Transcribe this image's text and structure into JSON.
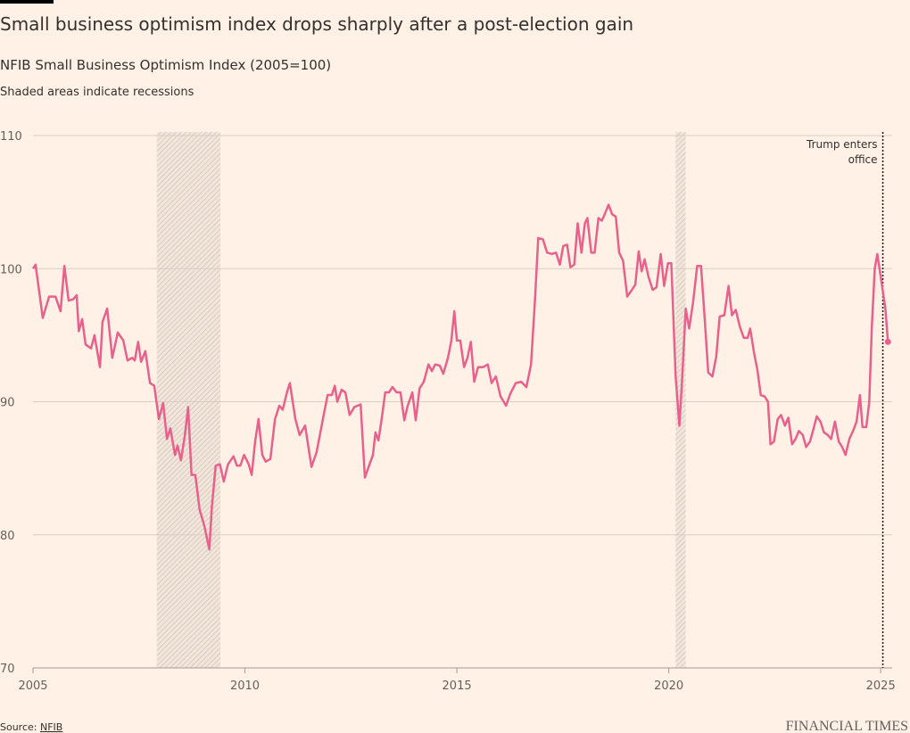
{
  "chart_data": {
    "type": "line",
    "title": "Small business optimism index drops sharply after a post-election gain",
    "subtitle": "NFIB Small Business Optimism Index (2005=100)",
    "note": "Shaded areas indicate recessions",
    "source_label": "Source:",
    "source": "NFIB",
    "brand": "FINANCIAL TIMES",
    "xlim": [
      2005,
      2025.27
    ],
    "xticks": [
      2005,
      2010,
      2015,
      2020,
      2025
    ],
    "ylim": [
      70,
      110
    ],
    "yticks": [
      70,
      80,
      90,
      100,
      110
    ],
    "grid": true,
    "recessions": [
      [
        2007.92,
        2009.42
      ],
      [
        2020.16,
        2020.4
      ]
    ],
    "annotation": {
      "text": [
        "Trump enters",
        "office"
      ],
      "x": 2025.05
    },
    "series": [
      {
        "name": "NFIB Small Business Optimism Index",
        "color": "#e8618c",
        "x": [
          2005.0,
          2005.06,
          2005.23,
          2005.38,
          2005.53,
          2005.65,
          2005.74,
          2005.84,
          2005.95,
          2006.03,
          2006.08,
          2006.16,
          2006.24,
          2006.37,
          2006.45,
          2006.58,
          2006.64,
          2006.75,
          2006.87,
          2007.0,
          2007.13,
          2007.23,
          2007.34,
          2007.4,
          2007.48,
          2007.55,
          2007.65,
          2007.76,
          2007.86,
          2007.97,
          2008.07,
          2008.16,
          2008.24,
          2008.35,
          2008.41,
          2008.49,
          2008.58,
          2008.66,
          2008.74,
          2008.83,
          2008.93,
          2009.04,
          2009.16,
          2009.22,
          2009.31,
          2009.41,
          2009.5,
          2009.6,
          2009.73,
          2009.81,
          2009.89,
          2009.98,
          2010.09,
          2010.16,
          2010.24,
          2010.32,
          2010.41,
          2010.49,
          2010.6,
          2010.71,
          2010.81,
          2010.89,
          2011.0,
          2011.06,
          2011.19,
          2011.29,
          2011.42,
          2011.57,
          2011.69,
          2011.84,
          2011.95,
          2012.05,
          2012.12,
          2012.18,
          2012.28,
          2012.37,
          2012.47,
          2012.58,
          2012.73,
          2012.83,
          2012.94,
          2013.02,
          2013.08,
          2013.15,
          2013.23,
          2013.31,
          2013.4,
          2013.48,
          2013.58,
          2013.67,
          2013.76,
          2013.84,
          2013.95,
          2014.03,
          2014.12,
          2014.22,
          2014.33,
          2014.41,
          2014.49,
          2014.6,
          2014.68,
          2014.79,
          2014.87,
          2014.94,
          2015.0,
          2015.08,
          2015.17,
          2015.25,
          2015.33,
          2015.41,
          2015.5,
          2015.62,
          2015.73,
          2015.82,
          2015.92,
          2016.03,
          2016.16,
          2016.26,
          2016.39,
          2016.52,
          2016.64,
          2016.75,
          2016.84,
          2016.92,
          2017.03,
          2017.13,
          2017.24,
          2017.34,
          2017.43,
          2017.51,
          2017.6,
          2017.68,
          2017.77,
          2017.85,
          2017.94,
          2018.02,
          2018.08,
          2018.17,
          2018.25,
          2018.34,
          2018.42,
          2018.49,
          2018.58,
          2018.66,
          2018.75,
          2018.83,
          2018.92,
          2019.02,
          2019.13,
          2019.21,
          2019.29,
          2019.36,
          2019.43,
          2019.52,
          2019.62,
          2019.71,
          2019.81,
          2019.89,
          2019.98,
          2020.06,
          2020.16,
          2020.25,
          2020.31,
          2020.4,
          2020.48,
          2020.57,
          2020.67,
          2020.76,
          2020.84,
          2020.93,
          2021.03,
          2021.12,
          2021.2,
          2021.31,
          2021.41,
          2021.49,
          2021.58,
          2021.68,
          2021.77,
          2021.86,
          2021.92,
          2022.01,
          2022.09,
          2022.17,
          2022.26,
          2022.34,
          2022.4,
          2022.48,
          2022.57,
          2022.65,
          2022.74,
          2022.82,
          2022.91,
          2022.99,
          2023.07,
          2023.16,
          2023.24,
          2023.33,
          2023.41,
          2023.49,
          2023.58,
          2023.66,
          2023.75,
          2023.83,
          2023.92,
          2024.01,
          2024.09,
          2024.17,
          2024.26,
          2024.36,
          2024.43,
          2024.51,
          2024.57,
          2024.66,
          2024.73,
          2024.79,
          2024.86,
          2024.92,
          2025.0,
          2025.11,
          2025.17
        ],
        "values": [
          100.0,
          100.3,
          96.3,
          97.9,
          97.9,
          96.8,
          100.2,
          97.6,
          97.7,
          98.0,
          95.3,
          96.2,
          94.3,
          94.0,
          95.0,
          92.6,
          96.0,
          97.0,
          93.3,
          95.2,
          94.6,
          93.1,
          93.3,
          93.1,
          94.5,
          93.0,
          93.8,
          91.4,
          91.2,
          88.7,
          89.9,
          87.2,
          88.0,
          86.0,
          86.7,
          85.6,
          87.4,
          89.6,
          84.5,
          84.5,
          81.9,
          80.7,
          78.9,
          82.1,
          85.2,
          85.3,
          84.0,
          85.3,
          85.9,
          85.2,
          85.2,
          86.0,
          85.3,
          84.5,
          87.0,
          88.7,
          86.0,
          85.5,
          85.7,
          88.7,
          89.7,
          89.4,
          90.8,
          91.4,
          88.7,
          87.5,
          88.2,
          85.1,
          86.2,
          88.7,
          90.5,
          90.5,
          91.2,
          90.0,
          90.9,
          90.7,
          89.0,
          89.6,
          89.8,
          84.3,
          85.3,
          86.0,
          87.7,
          87.1,
          88.8,
          90.7,
          90.7,
          91.1,
          90.7,
          90.7,
          88.6,
          89.7,
          90.7,
          88.6,
          91.0,
          91.5,
          92.8,
          92.3,
          92.8,
          92.7,
          92.1,
          93.3,
          94.6,
          96.8,
          94.6,
          94.6,
          92.6,
          93.3,
          94.5,
          91.5,
          92.6,
          92.6,
          92.8,
          91.4,
          91.9,
          90.4,
          89.7,
          90.6,
          91.4,
          91.5,
          91.1,
          92.8,
          97.5,
          102.3,
          102.2,
          101.2,
          101.1,
          101.2,
          100.3,
          101.7,
          101.8,
          100.1,
          100.3,
          103.4,
          101.2,
          103.4,
          103.8,
          101.2,
          101.2,
          103.8,
          103.6,
          104.1,
          104.8,
          104.1,
          103.9,
          101.2,
          100.6,
          97.9,
          98.4,
          98.8,
          101.3,
          99.8,
          100.7,
          99.4,
          98.4,
          98.6,
          101.1,
          98.7,
          100.4,
          100.4,
          92.0,
          88.2,
          91.4,
          97.0,
          95.5,
          97.4,
          100.2,
          100.2,
          96.6,
          92.2,
          91.9,
          93.4,
          96.4,
          96.5,
          98.7,
          96.5,
          96.9,
          95.6,
          94.8,
          94.8,
          95.5,
          93.7,
          92.4,
          90.5,
          90.4,
          90.0,
          86.8,
          87.0,
          88.7,
          89.0,
          88.2,
          88.8,
          86.8,
          87.2,
          87.8,
          87.5,
          86.6,
          87.0,
          87.9,
          88.9,
          88.5,
          87.7,
          87.5,
          87.2,
          88.5,
          87.0,
          86.6,
          86.0,
          87.2,
          87.9,
          88.5,
          90.5,
          88.1,
          88.1,
          90.0,
          95.6,
          100.0,
          101.1,
          99.4,
          97.0,
          94.5
        ]
      }
    ]
  }
}
